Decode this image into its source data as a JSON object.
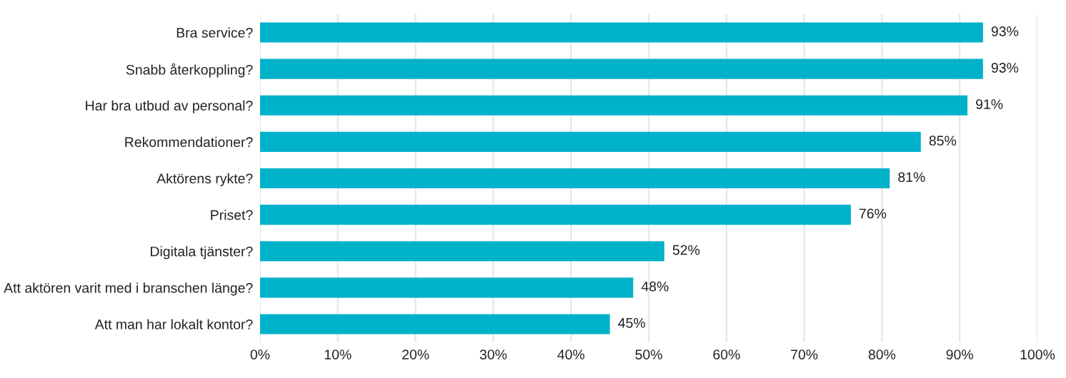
{
  "chart_data": {
    "type": "bar",
    "orientation": "horizontal",
    "categories": [
      "Bra service?",
      "Snabb återkoppling?",
      "Har bra utbud av personal?",
      "Rekommendationer?",
      "Aktörens rykte?",
      "Priset?",
      "Digitala tjänster?",
      "Att aktören varit med i branschen länge?",
      "Att man har lokalt kontor?"
    ],
    "values": [
      93,
      93,
      91,
      85,
      81,
      76,
      52,
      48,
      45
    ],
    "value_labels": [
      "93%",
      "93%",
      "91%",
      "85%",
      "81%",
      "76%",
      "52%",
      "48%",
      "45%"
    ],
    "color": "#00b2c9",
    "xlim": [
      0,
      100
    ],
    "xticks": [
      {
        "value": 0,
        "label": "0%"
      },
      {
        "value": 10,
        "label": "10%"
      },
      {
        "value": 20,
        "label": "20%"
      },
      {
        "value": 30,
        "label": "30%"
      },
      {
        "value": 40,
        "label": "40%"
      },
      {
        "value": 50,
        "label": "50%"
      },
      {
        "value": 60,
        "label": "60%"
      },
      {
        "value": 70,
        "label": "70%"
      },
      {
        "value": 80,
        "label": "80%"
      },
      {
        "value": 90,
        "label": "90%"
      },
      {
        "value": 100,
        "label": "100%"
      }
    ],
    "grid": "x"
  }
}
